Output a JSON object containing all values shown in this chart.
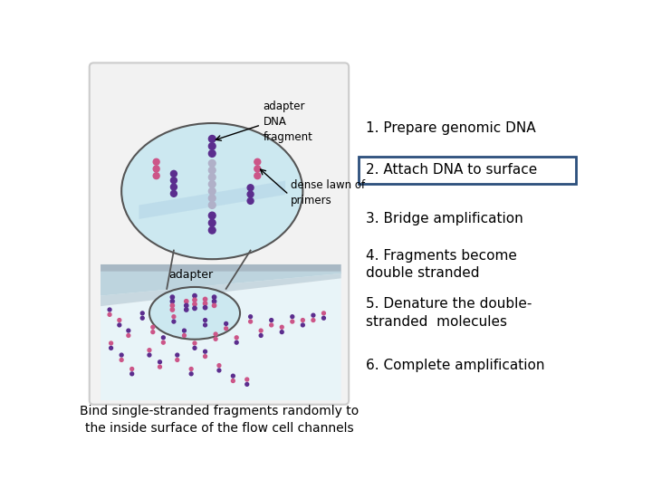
{
  "bg_color": "#ffffff",
  "panel_bg": "#f2f2f2",
  "panel_border": "#cccccc",
  "light_blue": "#cce8f0",
  "dark_purple": "#5b2d8e",
  "pink": "#cc5588",
  "gray_surface": "#a8b8c4",
  "gray_surface2": "#c8d8e0",
  "step1": "1. Prepare genomic DNA",
  "step2": "2. Attach DNA to surface",
  "step3": "3. Bridge amplification",
  "step4": "4. Fragments become\ndouble stranded",
  "step5": "5. Denature the double-\nstranded  molecules",
  "step6": "6. Complete amplification",
  "label_adapter_dna": "adapter\nDNA\nfragment",
  "label_dense_lawn": "dense lawn of\nprimers",
  "label_adapter": "adapter",
  "bottom_text": "Bind single-stranded fragments randomly to\nthe inside surface of the flow cell channels",
  "box2_color": "#2c4f7c",
  "text_color": "#1a1a1a"
}
